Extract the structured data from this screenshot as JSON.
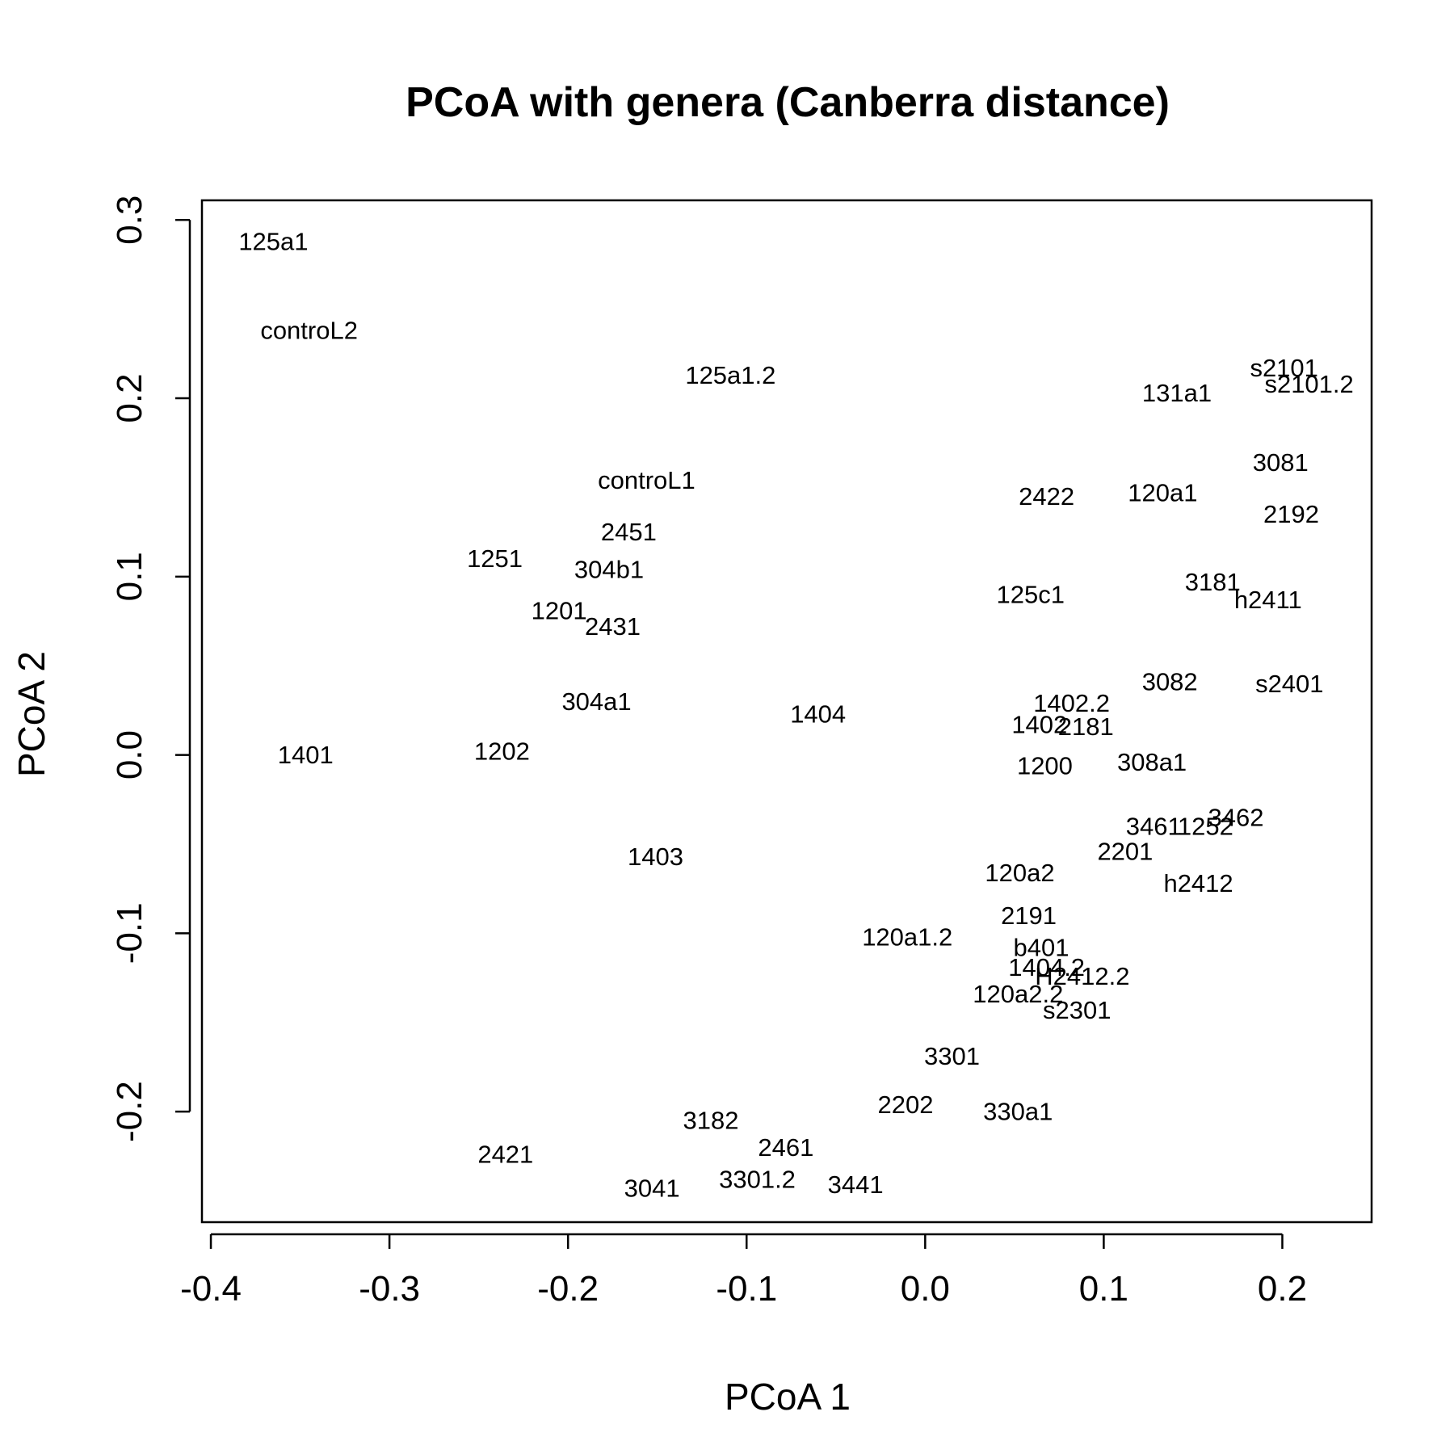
{
  "chart_data": {
    "type": "scatter",
    "title": "PCoA with genera (Canberra distance)",
    "xlabel": "PCoA 1",
    "ylabel": "PCoA 2",
    "xlim": [
      -0.405,
      0.25
    ],
    "ylim": [
      -0.262,
      0.311
    ],
    "xticks": [
      -0.4,
      -0.3,
      -0.2,
      -0.1,
      0.0,
      0.1,
      0.2
    ],
    "xtick_labels": [
      "-0.4",
      "-0.3",
      "-0.2",
      "-0.1",
      "0.0",
      "0.1",
      "0.2"
    ],
    "yticks": [
      -0.2,
      -0.1,
      0.0,
      0.1,
      0.2,
      0.3
    ],
    "ytick_labels": [
      "-0.2",
      "-0.1",
      "0.0",
      "0.1",
      "0.2",
      "0.3"
    ],
    "grid": false,
    "marker": "text-label",
    "points": [
      {
        "label": "125a1",
        "x": -0.365,
        "y": 0.288
      },
      {
        "label": "controL2",
        "x": -0.345,
        "y": 0.238
      },
      {
        "label": "125a1.2",
        "x": -0.109,
        "y": 0.213
      },
      {
        "label": "s2101",
        "x": 0.201,
        "y": 0.217
      },
      {
        "label": "s2101.2",
        "x": 0.215,
        "y": 0.208
      },
      {
        "label": "131a1",
        "x": 0.141,
        "y": 0.203
      },
      {
        "label": "3081",
        "x": 0.199,
        "y": 0.164
      },
      {
        "label": "controL1",
        "x": -0.156,
        "y": 0.154
      },
      {
        "label": "2422",
        "x": 0.068,
        "y": 0.145
      },
      {
        "label": "120a1",
        "x": 0.133,
        "y": 0.147
      },
      {
        "label": "2192",
        "x": 0.205,
        "y": 0.135
      },
      {
        "label": "2451",
        "x": -0.166,
        "y": 0.125
      },
      {
        "label": "1251",
        "x": -0.241,
        "y": 0.11
      },
      {
        "label": "304b1",
        "x": -0.177,
        "y": 0.104
      },
      {
        "label": "3181",
        "x": 0.161,
        "y": 0.097
      },
      {
        "label": "h2411",
        "x": 0.192,
        "y": 0.087
      },
      {
        "label": "125c1",
        "x": 0.059,
        "y": 0.09
      },
      {
        "label": "1201",
        "x": -0.205,
        "y": 0.081
      },
      {
        "label": "2431",
        "x": -0.175,
        "y": 0.072
      },
      {
        "label": "3082",
        "x": 0.137,
        "y": 0.041
      },
      {
        "label": "s2401",
        "x": 0.204,
        "y": 0.04
      },
      {
        "label": "304a1",
        "x": -0.184,
        "y": 0.03
      },
      {
        "label": "1404",
        "x": -0.06,
        "y": 0.023
      },
      {
        "label": "1402.2",
        "x": 0.082,
        "y": 0.029
      },
      {
        "label": "1402",
        "x": 0.064,
        "y": 0.017
      },
      {
        "label": "2181",
        "x": 0.09,
        "y": 0.016
      },
      {
        "label": "1401",
        "x": -0.347,
        "y": 0.0
      },
      {
        "label": "1202",
        "x": -0.237,
        "y": 0.002
      },
      {
        "label": "1200",
        "x": 0.067,
        "y": -0.006
      },
      {
        "label": "308a1",
        "x": 0.127,
        "y": -0.004
      },
      {
        "label": "3462",
        "x": 0.174,
        "y": -0.035
      },
      {
        "label": "1252",
        "x": 0.157,
        "y": -0.04
      },
      {
        "label": "3461",
        "x": 0.128,
        "y": -0.04
      },
      {
        "label": "2201",
        "x": 0.112,
        "y": -0.054
      },
      {
        "label": "1403",
        "x": -0.151,
        "y": -0.057
      },
      {
        "label": "120a2",
        "x": 0.053,
        "y": -0.066
      },
      {
        "label": "h2412",
        "x": 0.153,
        "y": -0.072
      },
      {
        "label": "2191",
        "x": 0.058,
        "y": -0.09
      },
      {
        "label": "120a1.2",
        "x": -0.01,
        "y": -0.102
      },
      {
        "label": "b401",
        "x": 0.065,
        "y": -0.108
      },
      {
        "label": "1404.2",
        "x": 0.068,
        "y": -0.119
      },
      {
        "label": "H2412.2",
        "x": 0.088,
        "y": -0.124
      },
      {
        "label": "120a2.2",
        "x": 0.052,
        "y": -0.134
      },
      {
        "label": "s2301",
        "x": 0.085,
        "y": -0.143
      },
      {
        "label": "3301",
        "x": 0.015,
        "y": -0.169
      },
      {
        "label": "2202",
        "x": -0.011,
        "y": -0.196
      },
      {
        "label": "330a1",
        "x": 0.052,
        "y": -0.2
      },
      {
        "label": "3182",
        "x": -0.12,
        "y": -0.205
      },
      {
        "label": "2461",
        "x": -0.078,
        "y": -0.22
      },
      {
        "label": "2421",
        "x": -0.235,
        "y": -0.224
      },
      {
        "label": "3301.2",
        "x": -0.094,
        "y": -0.238
      },
      {
        "label": "3441",
        "x": -0.039,
        "y": -0.241
      },
      {
        "label": "3041",
        "x": -0.153,
        "y": -0.243
      }
    ]
  }
}
